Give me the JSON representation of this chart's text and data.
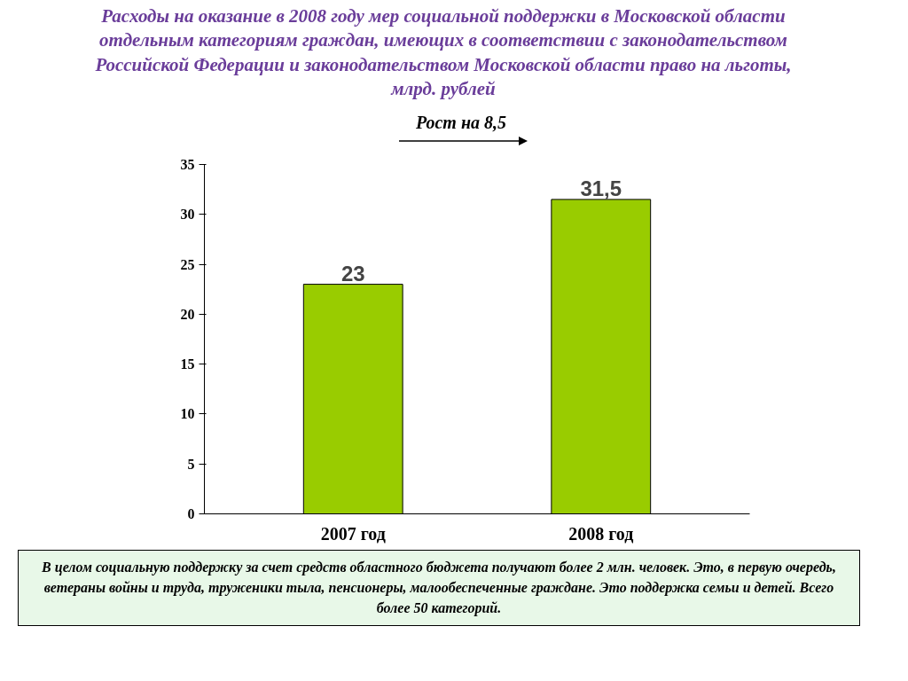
{
  "chart_data": {
    "type": "bar",
    "title": "Расходы на оказание в 2008 году мер социальной поддержки в Московской области отдельным категориям граждан, имеющих в соответствии с законодательством Российской Федерации и законодательством Московской области право на льготы, млрд. рублей",
    "categories": [
      "2007 год",
      "2008 год"
    ],
    "values": [
      23,
      31.5
    ],
    "value_labels": [
      "23",
      "31,5"
    ],
    "color": "#99cc00",
    "ylim": [
      0,
      35
    ],
    "yticks": [
      0,
      5,
      10,
      15,
      20,
      25,
      30,
      35
    ],
    "grid": false,
    "annotations": [
      "Рост на 8,5",
      "В целом социальную поддержку за счет средств областного бюджета получают более 2 млн. человек. Это, в первую очередь, ветераны войны и труда, труженики тыла, пенсионеры, малообеспеченные граждане. Это поддержка семьи и детей. Всего более 50 категорий."
    ]
  }
}
